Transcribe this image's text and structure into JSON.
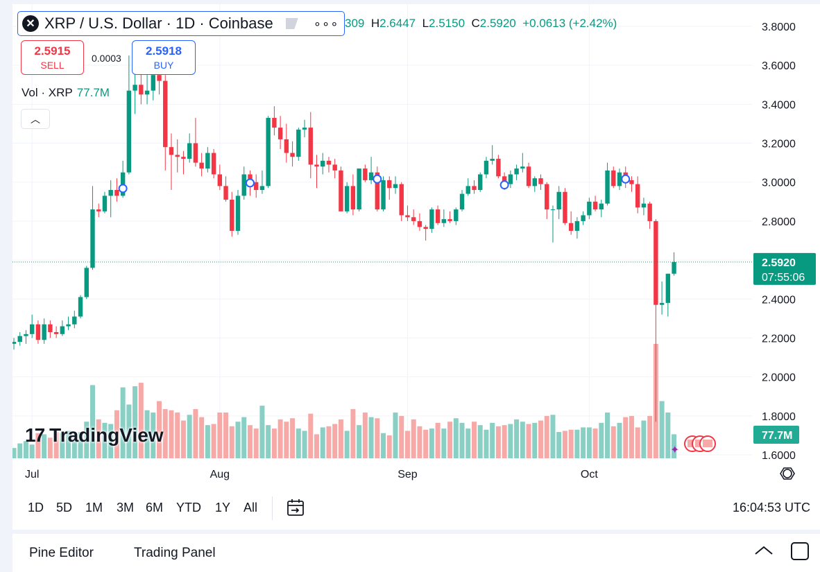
{
  "header": {
    "symbol_title": "XRP / U.S. Dollar · 1D · Coinbase",
    "more_label": "∘∘∘",
    "ohlc": {
      "open_partial": "309",
      "high_label": "H",
      "high": "2.6447",
      "low_label": "L",
      "low": "2.5150",
      "close_label": "C",
      "close": "2.5920",
      "change": "+0.0613 (+2.42%)"
    }
  },
  "trade": {
    "sell_price": "2.5915",
    "sell_label": "SELL",
    "spread": "0.0003",
    "buy_price": "2.5918",
    "buy_label": "BUY"
  },
  "volume_legend": {
    "label": "Vol · XRP",
    "value": "77.7M"
  },
  "collapse_label": "︿",
  "logo": {
    "mark": "17",
    "text": "TradingView"
  },
  "chart_data": {
    "type": "candlestick",
    "price_axis_ticks": [
      "3.8000",
      "3.6000",
      "3.4000",
      "3.2000",
      "3.0000",
      "2.8000",
      "2.6000",
      "2.4000",
      "2.2000",
      "2.0000",
      "1.8000",
      "1.6000"
    ],
    "ylim": [
      1.6,
      3.8
    ],
    "x_month_labels": [
      {
        "label": "Jul",
        "index": 3
      },
      {
        "label": "Aug",
        "index": 34
      },
      {
        "label": "Sep",
        "index": 65
      },
      {
        "label": "Oct",
        "index": 95
      }
    ],
    "last_price_label": "2.5920",
    "countdown_label": "07:55:06",
    "volume_label": "77.7M",
    "colors": {
      "up": "#089981",
      "down": "#f23645",
      "vol_up": "#89cfc4",
      "vol_down": "#f7a9a7",
      "price_badge": "#089981"
    },
    "candles": [
      {
        "o": 2.17,
        "h": 2.2,
        "l": 2.14,
        "c": 2.18
      },
      {
        "o": 2.18,
        "h": 2.23,
        "l": 2.16,
        "c": 2.21
      },
      {
        "o": 2.21,
        "h": 2.24,
        "l": 2.17,
        "c": 2.22
      },
      {
        "o": 2.22,
        "h": 2.32,
        "l": 2.2,
        "c": 2.27
      },
      {
        "o": 2.27,
        "h": 2.29,
        "l": 2.17,
        "c": 2.19
      },
      {
        "o": 2.19,
        "h": 2.3,
        "l": 2.17,
        "c": 2.27
      },
      {
        "o": 2.27,
        "h": 2.29,
        "l": 2.2,
        "c": 2.23
      },
      {
        "o": 2.23,
        "h": 2.26,
        "l": 2.2,
        "c": 2.22
      },
      {
        "o": 2.22,
        "h": 2.29,
        "l": 2.21,
        "c": 2.26
      },
      {
        "o": 2.26,
        "h": 2.31,
        "l": 2.24,
        "c": 2.27
      },
      {
        "o": 2.27,
        "h": 2.34,
        "l": 2.25,
        "c": 2.31
      },
      {
        "o": 2.31,
        "h": 2.42,
        "l": 2.3,
        "c": 2.41
      },
      {
        "o": 2.41,
        "h": 2.57,
        "l": 2.4,
        "c": 2.56
      },
      {
        "o": 2.56,
        "h": 2.98,
        "l": 2.55,
        "c": 2.86
      },
      {
        "o": 2.86,
        "h": 2.89,
        "l": 2.82,
        "c": 2.85
      },
      {
        "o": 2.85,
        "h": 2.95,
        "l": 2.84,
        "c": 2.93
      },
      {
        "o": 2.93,
        "h": 3.01,
        "l": 2.82,
        "c": 2.96
      },
      {
        "o": 2.96,
        "h": 3.02,
        "l": 2.9,
        "c": 2.93
      },
      {
        "o": 2.93,
        "h": 3.11,
        "l": 2.92,
        "c": 3.05
      },
      {
        "o": 3.05,
        "h": 3.65,
        "l": 3.04,
        "c": 3.47
      },
      {
        "o": 3.47,
        "h": 3.66,
        "l": 3.35,
        "c": 3.5
      },
      {
        "o": 3.5,
        "h": 3.62,
        "l": 3.4,
        "c": 3.45
      },
      {
        "o": 3.45,
        "h": 3.55,
        "l": 3.4,
        "c": 3.47
      },
      {
        "o": 3.47,
        "h": 3.6,
        "l": 3.42,
        "c": 3.55
      },
      {
        "o": 3.55,
        "h": 3.62,
        "l": 3.45,
        "c": 3.52
      },
      {
        "o": 3.52,
        "h": 3.55,
        "l": 3.06,
        "c": 3.18
      },
      {
        "o": 3.18,
        "h": 3.25,
        "l": 2.96,
        "c": 3.14
      },
      {
        "o": 3.14,
        "h": 3.22,
        "l": 3.05,
        "c": 3.13
      },
      {
        "o": 3.13,
        "h": 3.16,
        "l": 3.04,
        "c": 3.12
      },
      {
        "o": 3.12,
        "h": 3.25,
        "l": 3.1,
        "c": 3.2
      },
      {
        "o": 3.2,
        "h": 3.33,
        "l": 3.08,
        "c": 3.1
      },
      {
        "o": 3.1,
        "h": 3.15,
        "l": 3.03,
        "c": 3.07
      },
      {
        "o": 3.07,
        "h": 3.18,
        "l": 3.05,
        "c": 3.15
      },
      {
        "o": 3.15,
        "h": 3.17,
        "l": 3.02,
        "c": 3.04
      },
      {
        "o": 3.04,
        "h": 3.09,
        "l": 2.96,
        "c": 2.98
      },
      {
        "o": 2.98,
        "h": 3.03,
        "l": 2.9,
        "c": 2.91
      },
      {
        "o": 2.91,
        "h": 2.95,
        "l": 2.72,
        "c": 2.75
      },
      {
        "o": 2.75,
        "h": 2.96,
        "l": 2.73,
        "c": 2.93
      },
      {
        "o": 2.93,
        "h": 3.08,
        "l": 2.91,
        "c": 3.04
      },
      {
        "o": 3.04,
        "h": 3.06,
        "l": 2.93,
        "c": 3.0
      },
      {
        "o": 3.0,
        "h": 3.04,
        "l": 2.92,
        "c": 2.96
      },
      {
        "o": 2.96,
        "h": 3.06,
        "l": 2.94,
        "c": 2.98
      },
      {
        "o": 2.98,
        "h": 3.34,
        "l": 2.97,
        "c": 3.33
      },
      {
        "o": 3.33,
        "h": 3.39,
        "l": 3.24,
        "c": 3.28
      },
      {
        "o": 3.28,
        "h": 3.34,
        "l": 3.17,
        "c": 3.22
      },
      {
        "o": 3.22,
        "h": 3.3,
        "l": 3.1,
        "c": 3.15
      },
      {
        "o": 3.15,
        "h": 3.21,
        "l": 3.08,
        "c": 3.13
      },
      {
        "o": 3.13,
        "h": 3.28,
        "l": 3.11,
        "c": 3.27
      },
      {
        "o": 3.27,
        "h": 3.32,
        "l": 3.23,
        "c": 3.28
      },
      {
        "o": 3.28,
        "h": 3.36,
        "l": 3.02,
        "c": 3.09
      },
      {
        "o": 3.09,
        "h": 3.14,
        "l": 2.97,
        "c": 3.08
      },
      {
        "o": 3.08,
        "h": 3.15,
        "l": 3.04,
        "c": 3.11
      },
      {
        "o": 3.11,
        "h": 3.13,
        "l": 3.05,
        "c": 3.09
      },
      {
        "o": 3.09,
        "h": 3.12,
        "l": 3.02,
        "c": 3.06
      },
      {
        "o": 3.06,
        "h": 3.08,
        "l": 2.85,
        "c": 2.85
      },
      {
        "o": 2.85,
        "h": 3.0,
        "l": 2.84,
        "c": 2.98
      },
      {
        "o": 2.98,
        "h": 3.04,
        "l": 2.83,
        "c": 2.86
      },
      {
        "o": 2.86,
        "h": 3.07,
        "l": 2.85,
        "c": 3.07
      },
      {
        "o": 3.07,
        "h": 3.09,
        "l": 3.0,
        "c": 3.01
      },
      {
        "o": 3.01,
        "h": 3.13,
        "l": 2.99,
        "c": 3.05
      },
      {
        "o": 3.05,
        "h": 3.08,
        "l": 2.85,
        "c": 2.86
      },
      {
        "o": 2.86,
        "h": 3.03,
        "l": 2.85,
        "c": 3.01
      },
      {
        "o": 3.01,
        "h": 3.03,
        "l": 2.91,
        "c": 2.97
      },
      {
        "o": 2.97,
        "h": 3.03,
        "l": 2.94,
        "c": 2.99
      },
      {
        "o": 2.99,
        "h": 3.0,
        "l": 2.8,
        "c": 2.83
      },
      {
        "o": 2.83,
        "h": 2.88,
        "l": 2.8,
        "c": 2.82
      },
      {
        "o": 2.82,
        "h": 2.86,
        "l": 2.78,
        "c": 2.8
      },
      {
        "o": 2.8,
        "h": 2.84,
        "l": 2.75,
        "c": 2.77
      },
      {
        "o": 2.77,
        "h": 2.78,
        "l": 2.7,
        "c": 2.76
      },
      {
        "o": 2.76,
        "h": 2.87,
        "l": 2.74,
        "c": 2.86
      },
      {
        "o": 2.86,
        "h": 2.88,
        "l": 2.78,
        "c": 2.79
      },
      {
        "o": 2.79,
        "h": 2.86,
        "l": 2.77,
        "c": 2.81
      },
      {
        "o": 2.81,
        "h": 2.85,
        "l": 2.79,
        "c": 2.8
      },
      {
        "o": 2.8,
        "h": 2.87,
        "l": 2.78,
        "c": 2.86
      },
      {
        "o": 2.86,
        "h": 2.96,
        "l": 2.85,
        "c": 2.94
      },
      {
        "o": 2.94,
        "h": 3.02,
        "l": 2.93,
        "c": 2.98
      },
      {
        "o": 2.98,
        "h": 3.01,
        "l": 2.94,
        "c": 2.96
      },
      {
        "o": 2.96,
        "h": 3.05,
        "l": 2.95,
        "c": 3.04
      },
      {
        "o": 3.04,
        "h": 3.13,
        "l": 3.02,
        "c": 3.11
      },
      {
        "o": 3.11,
        "h": 3.19,
        "l": 3.09,
        "c": 3.12
      },
      {
        "o": 3.12,
        "h": 3.14,
        "l": 3.02,
        "c": 3.03
      },
      {
        "o": 3.03,
        "h": 3.05,
        "l": 2.96,
        "c": 2.99
      },
      {
        "o": 2.99,
        "h": 3.06,
        "l": 2.97,
        "c": 3.04
      },
      {
        "o": 3.04,
        "h": 3.09,
        "l": 3.01,
        "c": 3.07
      },
      {
        "o": 3.07,
        "h": 3.15,
        "l": 3.05,
        "c": 3.08
      },
      {
        "o": 3.08,
        "h": 3.1,
        "l": 2.97,
        "c": 2.98
      },
      {
        "o": 2.98,
        "h": 3.03,
        "l": 2.95,
        "c": 3.02
      },
      {
        "o": 3.02,
        "h": 3.04,
        "l": 2.96,
        "c": 2.99
      },
      {
        "o": 2.99,
        "h": 3.0,
        "l": 2.81,
        "c": 2.86
      },
      {
        "o": 2.86,
        "h": 2.88,
        "l": 2.69,
        "c": 2.86
      },
      {
        "o": 2.86,
        "h": 2.98,
        "l": 2.81,
        "c": 2.95
      },
      {
        "o": 2.95,
        "h": 2.97,
        "l": 2.78,
        "c": 2.79
      },
      {
        "o": 2.79,
        "h": 2.85,
        "l": 2.73,
        "c": 2.75
      },
      {
        "o": 2.75,
        "h": 2.82,
        "l": 2.71,
        "c": 2.8
      },
      {
        "o": 2.8,
        "h": 2.85,
        "l": 2.78,
        "c": 2.83
      },
      {
        "o": 2.83,
        "h": 2.92,
        "l": 2.81,
        "c": 2.9
      },
      {
        "o": 2.9,
        "h": 2.93,
        "l": 2.85,
        "c": 2.86
      },
      {
        "o": 2.86,
        "h": 2.91,
        "l": 2.82,
        "c": 2.89
      },
      {
        "o": 2.89,
        "h": 3.1,
        "l": 2.88,
        "c": 3.06
      },
      {
        "o": 3.06,
        "h": 3.08,
        "l": 2.97,
        "c": 2.98
      },
      {
        "o": 2.98,
        "h": 3.07,
        "l": 2.96,
        "c": 3.05
      },
      {
        "o": 3.05,
        "h": 3.08,
        "l": 2.97,
        "c": 3.01
      },
      {
        "o": 3.01,
        "h": 3.03,
        "l": 2.95,
        "c": 2.99
      },
      {
        "o": 2.99,
        "h": 3.03,
        "l": 2.84,
        "c": 2.87
      },
      {
        "o": 2.87,
        "h": 2.92,
        "l": 2.83,
        "c": 2.89
      },
      {
        "o": 2.89,
        "h": 2.9,
        "l": 2.76,
        "c": 2.8
      },
      {
        "o": 2.8,
        "h": 2.81,
        "l": 1.77,
        "c": 2.37
      },
      {
        "o": 2.37,
        "h": 2.49,
        "l": 2.32,
        "c": 2.38
      },
      {
        "o": 2.38,
        "h": 2.53,
        "l": 2.31,
        "c": 2.53
      },
      {
        "o": 2.53,
        "h": 2.64,
        "l": 2.52,
        "c": 2.59
      }
    ],
    "volumes": [
      9,
      13,
      15,
      12,
      22,
      21,
      18,
      23,
      22,
      24,
      22,
      23,
      32,
      64,
      34,
      31,
      30,
      42,
      62,
      47,
      63,
      66,
      42,
      40,
      50,
      43,
      42,
      40,
      33,
      38,
      43,
      36,
      29,
      30,
      40,
      40,
      28,
      32,
      36,
      29,
      26,
      46,
      29,
      26,
      34,
      32,
      35,
      26,
      24,
      39,
      21,
      27,
      28,
      30,
      34,
      24,
      43,
      29,
      40,
      36,
      35,
      22,
      20,
      40,
      37,
      24,
      34,
      28,
      25,
      26,
      31,
      26,
      32,
      35,
      31,
      26,
      32,
      29,
      25,
      31,
      28,
      29,
      30,
      34,
      32,
      30,
      31,
      33,
      37,
      38,
      23,
      24,
      25,
      25,
      27,
      27,
      26,
      31,
      40,
      28,
      31,
      36,
      37,
      27,
      33,
      37,
      100,
      50,
      40,
      21
    ]
  },
  "range_bar": {
    "items": [
      "1D",
      "5D",
      "1M",
      "3M",
      "6M",
      "YTD",
      "1Y",
      "All"
    ],
    "time": "16:04:53 UTC"
  },
  "bottom_bar": {
    "pine_editor": "Pine Editor",
    "trading_panel": "Trading Panel"
  }
}
